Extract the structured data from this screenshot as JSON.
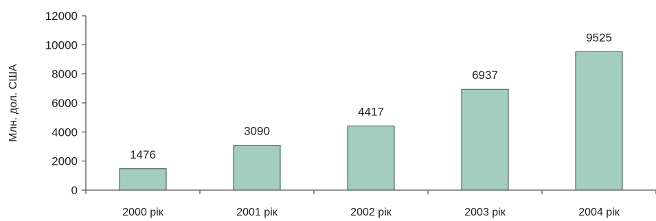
{
  "chart_data": {
    "type": "bar",
    "categories": [
      "2000 рік",
      "2001 рік",
      "2002 рік",
      "2003 рік",
      "2004 рік"
    ],
    "values": [
      1476,
      3090,
      4417,
      6937,
      9525
    ],
    "data_labels": [
      "1476",
      "3090",
      "4417",
      "6937",
      "9525"
    ],
    "ylabel": "Млн. дол. США",
    "ylim": [
      0,
      12000
    ],
    "yticks": [
      0,
      2000,
      4000,
      6000,
      8000,
      10000,
      12000
    ],
    "ytick_labels": [
      "0",
      "2000",
      "4000",
      "6000",
      "8000",
      "10000",
      "12000"
    ],
    "grid": false,
    "bar_color": "#a3cdbf",
    "bar_edge_color": "#2f4f43",
    "axis_color": "#555555"
  }
}
